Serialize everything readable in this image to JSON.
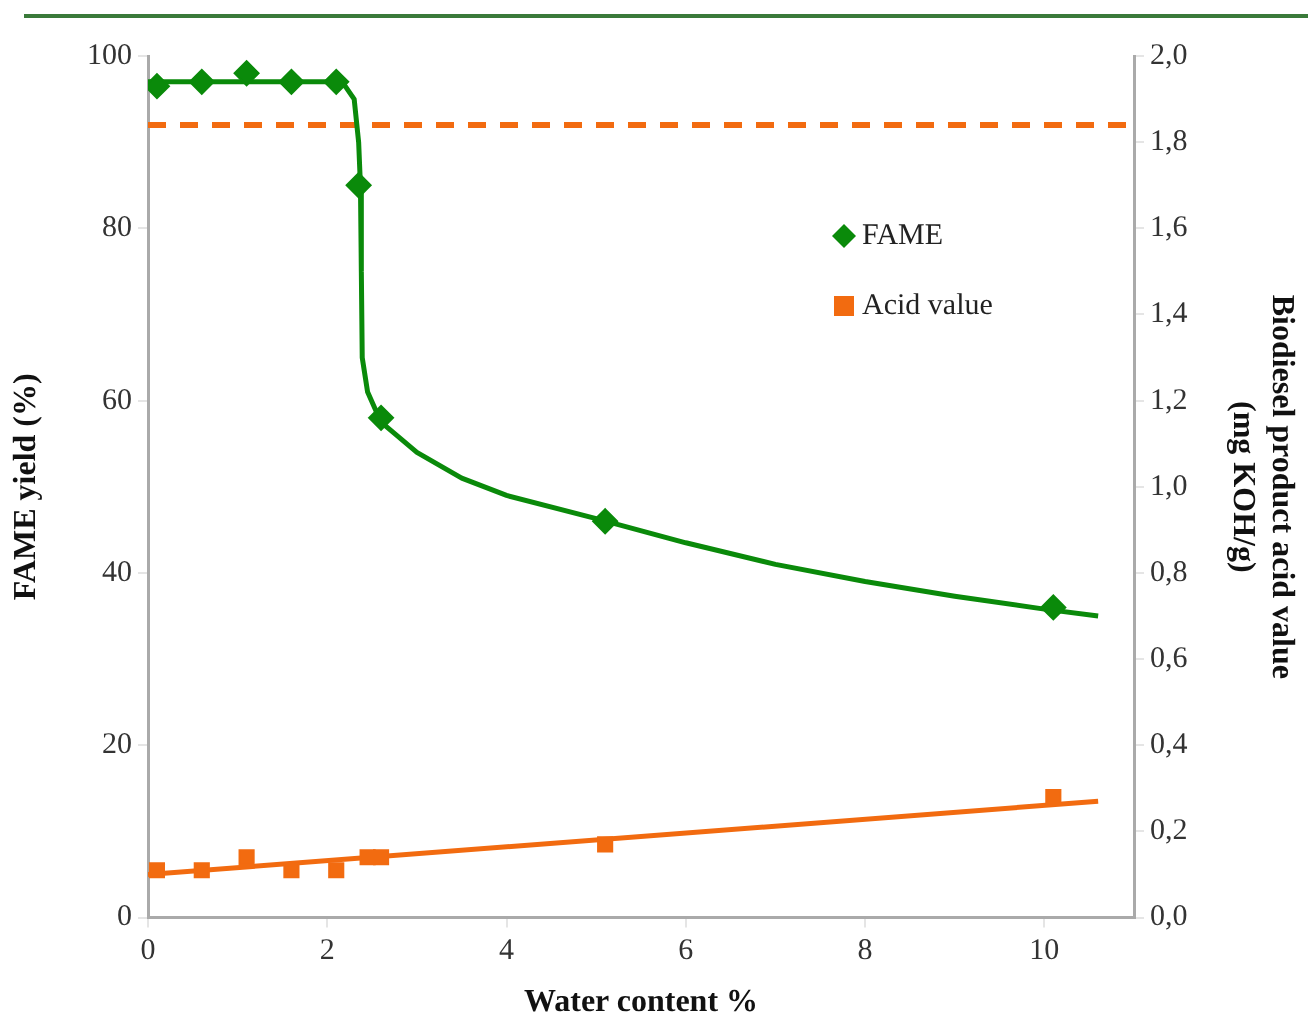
{
  "chart_data": {
    "type": "scatter",
    "xlabel": "Water content %",
    "ylabel": "FAME yield (%)",
    "y2label": "Biodiesel product acid value (mg KOH/g)",
    "xlim": [
      0,
      11
    ],
    "xticks": [
      0,
      2,
      4,
      6,
      8,
      10
    ],
    "ylim": [
      0,
      100
    ],
    "yticks": [
      0,
      20,
      40,
      60,
      80,
      100
    ],
    "y2lim": [
      0,
      2
    ],
    "y2ticks": [
      {
        "value": 0,
        "label": "0,0"
      },
      {
        "value": 0.2,
        "label": "0,2"
      },
      {
        "value": 0.4,
        "label": "0,4"
      },
      {
        "value": 0.6,
        "label": "0,6"
      },
      {
        "value": 0.8,
        "label": "0,8"
      },
      {
        "value": 1,
        "label": "1,0"
      },
      {
        "value": 1.2,
        "label": "1,2"
      },
      {
        "value": 1.4,
        "label": "1,4"
      },
      {
        "value": 1.6,
        "label": "1,6"
      },
      {
        "value": 1.8,
        "label": "1,8"
      },
      {
        "value": 2,
        "label": "2,0"
      }
    ],
    "grid": false,
    "legend": "right",
    "series": [
      {
        "name": "FAME",
        "marker": "diamond",
        "color": "#0a8a0a",
        "x": [
          0.1,
          0.6,
          1.1,
          1.6,
          2.1,
          2.35,
          2.6,
          5.1,
          10.1
        ],
        "values": [
          96.5,
          97,
          98,
          97,
          97,
          85,
          58,
          46,
          36
        ]
      },
      {
        "name": "Acid value",
        "marker": "square",
        "axis": "y2",
        "color": "#f26b10",
        "x": [
          0.1,
          0.6,
          1.1,
          1.6,
          2.1,
          2.45,
          2.6,
          5.1,
          10.1
        ],
        "values": [
          0.11,
          0.11,
          0.14,
          0.11,
          0.11,
          0.14,
          0.14,
          0.17,
          0.28
        ]
      },
      {
        "type": "line",
        "marker": "none",
        "color": "#0a8a0a",
        "x": [
          0,
          0.5,
          1,
          1.5,
          2,
          2.2,
          2.3,
          2.35,
          2.37,
          2.38,
          2.39,
          2.45,
          2.6,
          3,
          3.5,
          4,
          5,
          6,
          7,
          8,
          9,
          10,
          10.6
        ],
        "values": [
          97,
          97,
          97,
          97,
          97,
          96.5,
          95,
          90,
          85,
          75,
          65,
          61,
          57.5,
          54,
          51,
          49,
          46.3,
          43.5,
          41,
          39,
          37.3,
          35.8,
          35
        ]
      },
      {
        "type": "line",
        "marker": "none",
        "axis": "y2",
        "color": "#f26b10",
        "x": [
          0,
          10.6
        ],
        "values": [
          0.1,
          0.27
        ]
      }
    ],
    "ref_lines": [
      {
        "axis": "y2",
        "value": 1.84,
        "color": "#f26b10",
        "line_style": "dashed"
      }
    ]
  }
}
